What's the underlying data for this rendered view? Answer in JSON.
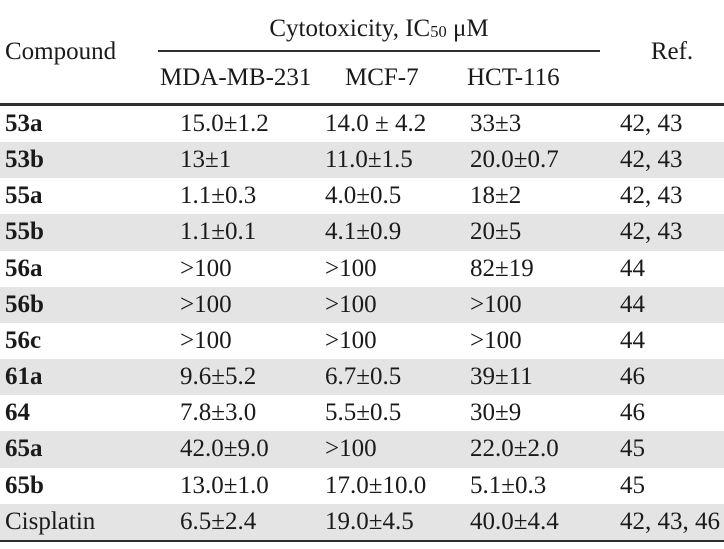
{
  "table": {
    "header": {
      "compound": "Compound",
      "ref": "Ref.",
      "spanner_prefix": "Cytotoxicity, IC",
      "spanner_sub": "50",
      "spanner_suffix": " μM",
      "columns": [
        "MDA-MB-231",
        "MCF-7",
        "HCT-116"
      ]
    },
    "rows": [
      {
        "compound": "53a",
        "mda": "15.0±1.2",
        "mcf": "14.0 ± 4.2",
        "hct": "33±3",
        "ref": "42, 43"
      },
      {
        "compound": "53b",
        "mda": "13±1",
        "mcf": "11.0±1.5",
        "hct": "20.0±0.7",
        "ref": "42, 43"
      },
      {
        "compound": "55a",
        "mda": "1.1±0.3",
        "mcf": "4.0±0.5",
        "hct": "18±2",
        "ref": "42, 43"
      },
      {
        "compound": "55b",
        "mda": "1.1±0.1",
        "mcf": "4.1±0.9",
        "hct": "20±5",
        "ref": "42, 43"
      },
      {
        "compound": "56a",
        "mda": ">100",
        "mcf": ">100",
        "hct": "82±19",
        "ref": "44"
      },
      {
        "compound": "56b",
        "mda": ">100",
        "mcf": ">100",
        "hct": ">100",
        "ref": "44"
      },
      {
        "compound": "56c",
        "mda": ">100",
        "mcf": ">100",
        "hct": ">100",
        "ref": "44"
      },
      {
        "compound": "61a",
        "mda": "9.6±5.2",
        "mcf": "6.7±0.5",
        "hct": "39±11",
        "ref": "46"
      },
      {
        "compound": "64",
        "mda": "7.8±3.0",
        "mcf": "5.5±0.5",
        "hct": "30±9",
        "ref": "46"
      },
      {
        "compound": "65a",
        "mda": "42.0±9.0",
        "mcf": ">100",
        "hct": "22.0±2.0",
        "ref": "45"
      },
      {
        "compound": "65b",
        "mda": "13.0±1.0",
        "mcf": "17.0±10.0",
        "hct": "5.1±0.3",
        "ref": "45"
      },
      {
        "compound": "Cisplatin",
        "mda": "6.5±2.4",
        "mcf": "19.0±4.5",
        "hct": "40.0±4.4",
        "ref": "42, 43, 46"
      }
    ]
  },
  "colors": {
    "background": "#ffffff",
    "text": "#1a1a1a",
    "rule": "#2f2f2f",
    "stripe": "#e4e4e4"
  }
}
